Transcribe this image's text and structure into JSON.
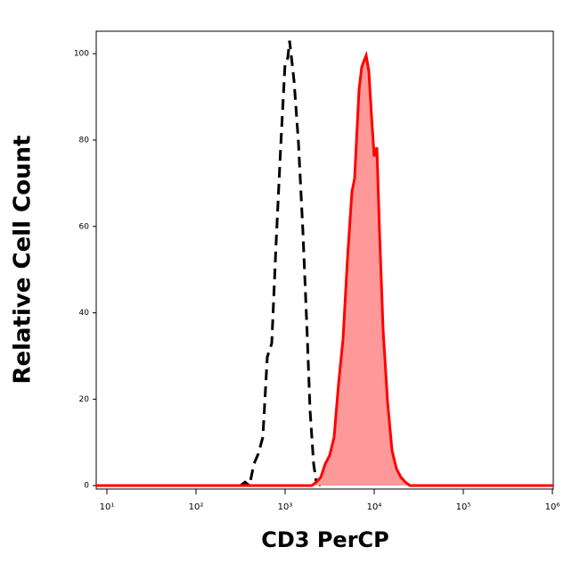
{
  "chart_data": {
    "type": "histogram-overlay",
    "xlabel": "CD3 PerCP",
    "ylabel": "Relative Cell Count",
    "xscale": "log",
    "xlim": [
      7.59,
      1023293
    ],
    "ylim": [
      -0.8,
      105.2
    ],
    "xticks": [
      {
        "value": 10,
        "label": "10¹"
      },
      {
        "value": 100,
        "label": "10²"
      },
      {
        "value": 1000,
        "label": "10³"
      },
      {
        "value": 10000,
        "label": "10⁴"
      },
      {
        "value": 100000,
        "label": "10⁵"
      },
      {
        "value": 1000000,
        "label": "10⁶"
      }
    ],
    "yticks": [
      0,
      20,
      40,
      60,
      80,
      100
    ],
    "series": [
      {
        "color": "#000000",
        "style": "dashed",
        "filled": false,
        "x": [
          316,
          355,
          398,
          447,
          501,
          562,
          631,
          708,
          794,
          891,
          1000,
          1072,
          1122,
          1259,
          1413,
          1585,
          1778,
          1905,
          2089,
          2239,
          2512
        ],
        "values": [
          0,
          0.8,
          0,
          5,
          7.4,
          11.2,
          29.8,
          32.9,
          56.6,
          78.3,
          97.9,
          99,
          103,
          93.8,
          79.3,
          58.7,
          33.9,
          17.4,
          5,
          0.8,
          0
        ]
      },
      {
        "color": "#ff0000",
        "fill": "#ff9999",
        "style": "solid",
        "filled": true,
        "x": [
          7.59,
          1995,
          2239,
          2512,
          2818,
          3162,
          3548,
          3981,
          4467,
          5012,
          5623,
          6026,
          6310,
          6761,
          7244,
          7762,
          8128,
          8710,
          9333,
          10000,
          10715,
          11482,
          12589,
          14125,
          15849,
          17783,
          19953,
          22387,
          25119,
          31623,
          1023293
        ],
        "values": [
          0,
          0,
          0.8,
          1.9,
          5,
          7,
          11.2,
          23.6,
          33.9,
          52.5,
          68,
          71.1,
          79.3,
          91.7,
          96.9,
          98.6,
          99.6,
          95.9,
          85.5,
          76.2,
          78.3,
          58.7,
          36,
          19.4,
          8.1,
          3.9,
          1.9,
          0.8,
          0,
          0,
          0
        ]
      }
    ]
  }
}
